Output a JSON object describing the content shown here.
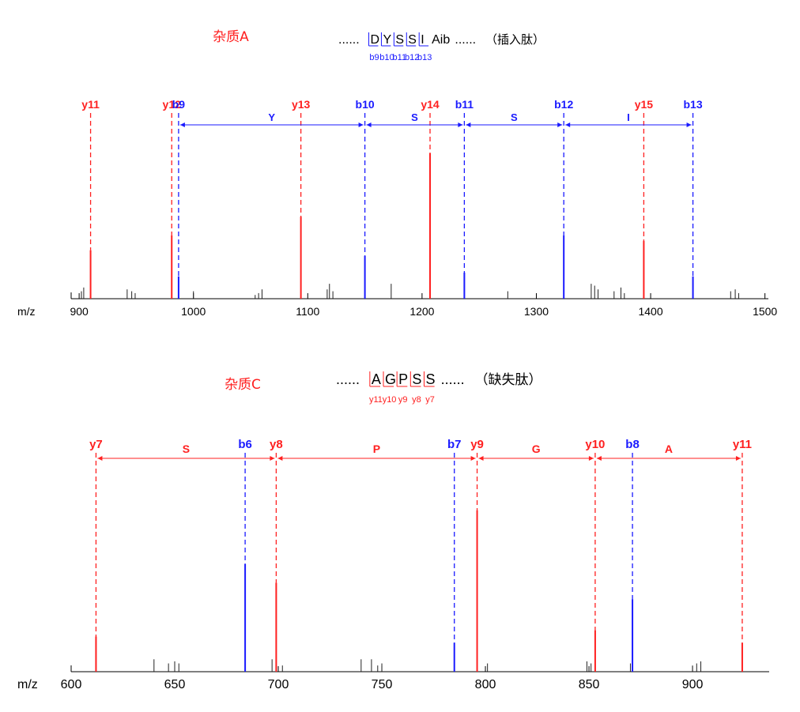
{
  "colors": {
    "y_ion": "#ff2020",
    "b_ion": "#1a1aff",
    "noise": "#222222",
    "axis": "#000000"
  },
  "chart_data": [
    {
      "type": "bar",
      "panel": "top",
      "title": "杂质A",
      "sequence": {
        "prefix": "......",
        "residues": [
          "D",
          "Y",
          "S",
          "S",
          "I"
        ],
        "tail": "Aib",
        "suffix": "......",
        "note": "（插入肽）",
        "marker_labels": [
          "b9",
          "b10",
          "b11",
          "b12",
          "b13"
        ],
        "marker_color": "b_ion"
      },
      "xlabel": "m/z",
      "xlim": [
        893,
        1503
      ],
      "ylim": [
        0,
        100
      ],
      "xticks": [
        900,
        1000,
        1100,
        1200,
        1300,
        1400,
        1500
      ],
      "series": [
        {
          "ion": "y",
          "peaks": [
            {
              "label": "y11",
              "mz": 910,
              "intensity": 26
            },
            {
              "label": "y12",
              "mz": 981,
              "intensity": 34
            },
            {
              "label": "y13",
              "mz": 1094,
              "intensity": 44
            },
            {
              "label": "y14",
              "mz": 1207,
              "intensity": 78
            },
            {
              "label": "y15",
              "mz": 1394,
              "intensity": 31
            }
          ]
        },
        {
          "ion": "b",
          "peaks": [
            {
              "label": "b9",
              "mz": 987,
              "intensity": 12
            },
            {
              "label": "b10",
              "mz": 1150,
              "intensity": 23
            },
            {
              "label": "b11",
              "mz": 1237,
              "intensity": 14
            },
            {
              "label": "b12",
              "mz": 1324,
              "intensity": 34
            },
            {
              "label": "b13",
              "mz": 1437,
              "intensity": 12
            }
          ]
        }
      ],
      "gaps": [
        {
          "from": 987,
          "to": 1150,
          "label": "Y"
        },
        {
          "from": 1150,
          "to": 1237,
          "label": "S"
        },
        {
          "from": 1237,
          "to": 1324,
          "label": "S"
        },
        {
          "from": 1324,
          "to": 1437,
          "label": "I"
        }
      ],
      "noise_peaks": [
        {
          "mz": 902,
          "intensity": 4
        },
        {
          "mz": 904,
          "intensity": 6
        },
        {
          "mz": 942,
          "intensity": 5
        },
        {
          "mz": 946,
          "intensity": 4
        },
        {
          "mz": 949,
          "intensity": 3
        },
        {
          "mz": 1000,
          "intensity": 4
        },
        {
          "mz": 1054,
          "intensity": 2
        },
        {
          "mz": 1057,
          "intensity": 3
        },
        {
          "mz": 1060,
          "intensity": 5
        },
        {
          "mz": 1117,
          "intensity": 5
        },
        {
          "mz": 1119,
          "intensity": 8
        },
        {
          "mz": 1122,
          "intensity": 4
        },
        {
          "mz": 1173,
          "intensity": 8
        },
        {
          "mz": 1275,
          "intensity": 4
        },
        {
          "mz": 1348,
          "intensity": 8
        },
        {
          "mz": 1351,
          "intensity": 7
        },
        {
          "mz": 1354,
          "intensity": 5
        },
        {
          "mz": 1368,
          "intensity": 4
        },
        {
          "mz": 1374,
          "intensity": 6
        },
        {
          "mz": 1377,
          "intensity": 3
        },
        {
          "mz": 1470,
          "intensity": 4
        },
        {
          "mz": 1474,
          "intensity": 5
        },
        {
          "mz": 1477,
          "intensity": 3
        }
      ]
    },
    {
      "type": "bar",
      "panel": "bottom",
      "title": "杂质C",
      "sequence": {
        "prefix": "......",
        "residues": [
          "A",
          "G",
          "P",
          "S",
          "S"
        ],
        "tail": "",
        "suffix": "......",
        "note": "（缺失肽）",
        "marker_labels": [
          "y11",
          "y10",
          "y9",
          "y8",
          "y7"
        ],
        "marker_color": "y_ion"
      },
      "xlabel": "m/z",
      "xlim": [
        600,
        937
      ],
      "ylim": [
        0,
        100
      ],
      "xticks": [
        600,
        650,
        700,
        750,
        800,
        850,
        900
      ],
      "series": [
        {
          "ion": "y",
          "peaks": [
            {
              "label": "y7",
              "mz": 612,
              "intensity": 17
            },
            {
              "label": "y8",
              "mz": 699,
              "intensity": 43
            },
            {
              "label": "y9",
              "mz": 796,
              "intensity": 78
            },
            {
              "label": "y10",
              "mz": 853,
              "intensity": 20
            },
            {
              "label": "y11",
              "mz": 924,
              "intensity": 14
            }
          ]
        },
        {
          "ion": "b",
          "peaks": [
            {
              "label": "b6",
              "mz": 684,
              "intensity": 52
            },
            {
              "label": "b7",
              "mz": 785,
              "intensity": 14
            },
            {
              "label": "b8",
              "mz": 871,
              "intensity": 35
            }
          ]
        }
      ],
      "gaps": [
        {
          "from": 612,
          "to": 699,
          "label": "S"
        },
        {
          "from": 699,
          "to": 796,
          "label": "P"
        },
        {
          "from": 796,
          "to": 853,
          "label": "G"
        },
        {
          "from": 853,
          "to": 924,
          "label": "A"
        }
      ],
      "noise_peaks": [
        {
          "mz": 640,
          "intensity": 6
        },
        {
          "mz": 647,
          "intensity": 4
        },
        {
          "mz": 650,
          "intensity": 5
        },
        {
          "mz": 652,
          "intensity": 4
        },
        {
          "mz": 697,
          "intensity": 6
        },
        {
          "mz": 702,
          "intensity": 3
        },
        {
          "mz": 740,
          "intensity": 6
        },
        {
          "mz": 745,
          "intensity": 6
        },
        {
          "mz": 748,
          "intensity": 3
        },
        {
          "mz": 750,
          "intensity": 4
        },
        {
          "mz": 801,
          "intensity": 4
        },
        {
          "mz": 849,
          "intensity": 5
        },
        {
          "mz": 851,
          "intensity": 4
        },
        {
          "mz": 870,
          "intensity": 4
        },
        {
          "mz": 900,
          "intensity": 3
        },
        {
          "mz": 902,
          "intensity": 4
        },
        {
          "mz": 904,
          "intensity": 5
        }
      ]
    }
  ]
}
